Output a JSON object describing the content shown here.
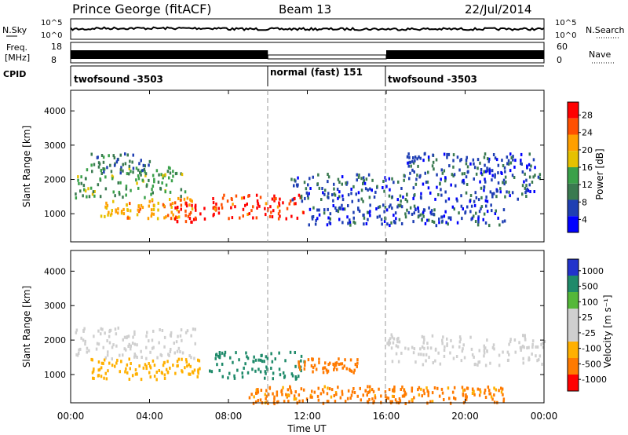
{
  "header": {
    "title": "Prince George (fitACF)",
    "beam": "Beam 13",
    "date": "22/Jul/2014"
  },
  "noise_panel": {
    "left_label": "N.Sky",
    "left_ticks": [
      "10^5",
      "10^0"
    ],
    "right_ticks": [
      "10^5",
      "10^0"
    ],
    "right_label": "N.Search"
  },
  "freq_panel": {
    "label_line1": "Freq.",
    "label_line2": "[MHz]",
    "left_ticks": [
      "18",
      "8"
    ],
    "right_ticks": [
      "60",
      "0"
    ],
    "right_label": "Nave"
  },
  "cpid": {
    "label": "CPID",
    "segments": [
      {
        "start_hour": 0,
        "end_hour": 10,
        "name": "twofsound -3503"
      },
      {
        "start_hour": 10,
        "end_hour": 16,
        "name": "normal (fast) 151"
      },
      {
        "start_hour": 16,
        "end_hour": 24,
        "name": "twofsound -3503"
      }
    ]
  },
  "colors": {
    "power_scale": [
      "#0000ff",
      "#1f3fb3",
      "#3a7a50",
      "#3aa14a",
      "#e6c100",
      "#ff9f00",
      "#ff5000",
      "#ff0000"
    ],
    "velocity_scale": [
      "#ff0000",
      "#ff7a00",
      "#ffb000",
      "#cfcfcf",
      "#cfcfcf",
      "#55b83a",
      "#1f8a6a",
      "#2233cc"
    ]
  },
  "chart_data": [
    {
      "type": "heatmap",
      "title": "Power",
      "ylabel": "Slant Range [km]",
      "xlabel": "Time UT",
      "xlim": [
        0,
        24
      ],
      "ylim": [
        180,
        4600
      ],
      "x_ticks": [
        "00:00",
        "04:00",
        "08:00",
        "12:00",
        "16:00",
        "20:00",
        "00:00"
      ],
      "y_ticks": [
        1000,
        2000,
        3000,
        4000
      ],
      "colorbar": {
        "label": "Power [dB]",
        "ticks": [
          "28",
          "24",
          "20",
          "16",
          "12",
          "8",
          "4"
        ],
        "range": [
          0,
          30
        ]
      },
      "bands": [
        {
          "t0": 0.2,
          "t1": 5.8,
          "r0": 1500,
          "r1": 2400,
          "level": 12
        },
        {
          "t0": 1.5,
          "t1": 6.2,
          "r0": 900,
          "r1": 1500,
          "level": 20
        },
        {
          "t0": 5.2,
          "t1": 6.8,
          "r0": 800,
          "r1": 1400,
          "level": 28
        },
        {
          "t0": 7.0,
          "t1": 11.8,
          "r0": 900,
          "r1": 1600,
          "level": 26
        },
        {
          "t0": 1.0,
          "t1": 4.0,
          "r0": 2200,
          "r1": 2800,
          "level": 8
        },
        {
          "t0": 11.0,
          "t1": 24.0,
          "r0": 1400,
          "r1": 2200,
          "level": 6
        },
        {
          "t0": 12.0,
          "t1": 22.0,
          "r0": 700,
          "r1": 1300,
          "level": 6
        },
        {
          "t0": 17.0,
          "t1": 23.5,
          "r0": 2200,
          "r1": 2800,
          "level": 6
        }
      ]
    },
    {
      "type": "heatmap",
      "title": "Velocity",
      "ylabel": "Slant Range [km]",
      "xlabel": "Time UT",
      "xlim": [
        0,
        24
      ],
      "ylim": [
        180,
        4600
      ],
      "x_ticks": [
        "00:00",
        "04:00",
        "08:00",
        "12:00",
        "16:00",
        "20:00",
        "00:00"
      ],
      "y_ticks": [
        1000,
        2000,
        3000,
        4000
      ],
      "colorbar": {
        "label": "Velocity [m s⁻¹]",
        "ticks": [
          "1000",
          "500",
          "100",
          "25",
          "-25",
          "-100",
          "-500",
          "-1000"
        ],
        "range": [
          -1000,
          1000
        ]
      },
      "bands": [
        {
          "t0": 0.2,
          "t1": 6.5,
          "r0": 1500,
          "r1": 2400,
          "level": 0
        },
        {
          "t0": 1.0,
          "t1": 6.5,
          "r0": 900,
          "r1": 1500,
          "level": -60
        },
        {
          "t0": 7.0,
          "t1": 11.8,
          "r0": 900,
          "r1": 1700,
          "level": 300
        },
        {
          "t0": 11.5,
          "t1": 14.5,
          "r0": 1100,
          "r1": 1500,
          "level": -300
        },
        {
          "t0": 16.0,
          "t1": 24.0,
          "r0": 1300,
          "r1": 2200,
          "level": 0
        },
        {
          "t0": 9.0,
          "t1": 22.0,
          "r0": 200,
          "r1": 700,
          "level": -200
        }
      ]
    }
  ]
}
